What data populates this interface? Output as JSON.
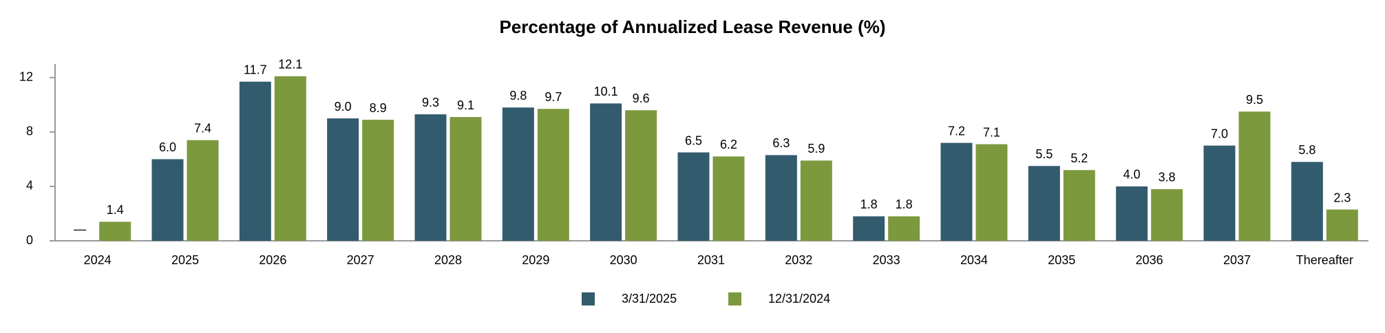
{
  "chart_data": {
    "type": "bar",
    "title": "Percentage of Annualized Lease Revenue (%)",
    "categories": [
      "2024",
      "2025",
      "2026",
      "2027",
      "2028",
      "2029",
      "2030",
      "2031",
      "2032",
      "2033",
      "2034",
      "2035",
      "2036",
      "2037",
      "Thereafter"
    ],
    "series": [
      {
        "name": "3/31/2025",
        "color": "#335b6e",
        "values": [
          null,
          6.0,
          11.7,
          9.0,
          9.3,
          9.8,
          10.1,
          6.5,
          6.3,
          1.8,
          7.2,
          5.5,
          4.0,
          7.0,
          5.8
        ],
        "value_labels": [
          "—",
          "6.0",
          "11.7",
          "9.0",
          "9.3",
          "9.8",
          "10.1",
          "6.5",
          "6.3",
          "1.8",
          "7.2",
          "5.5",
          "4.0",
          "7.0",
          "5.8"
        ]
      },
      {
        "name": "12/31/2024",
        "color": "#7d993e",
        "values": [
          1.4,
          7.4,
          12.1,
          8.9,
          9.1,
          9.7,
          9.6,
          6.2,
          5.9,
          1.8,
          7.1,
          5.2,
          3.8,
          9.5,
          2.3
        ],
        "value_labels": [
          "1.4",
          "7.4",
          "12.1",
          "8.9",
          "9.1",
          "9.7",
          "9.6",
          "6.2",
          "5.9",
          "1.8",
          "7.1",
          "5.2",
          "3.8",
          "9.5",
          "2.3"
        ]
      }
    ],
    "ylim": [
      0,
      13
    ],
    "yticks": [
      0,
      4,
      8,
      12
    ],
    "grid": false
  }
}
